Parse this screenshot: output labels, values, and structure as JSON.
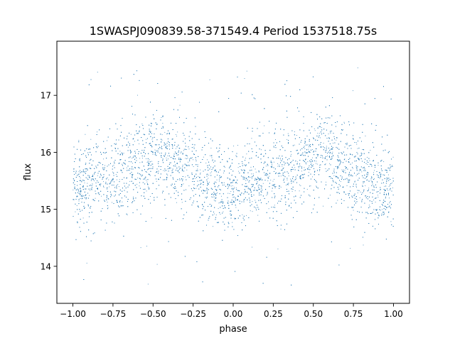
{
  "chart_data": {
    "type": "scatter",
    "title": "1SWASPJ090839.58-371549.4 Period 1537518.75s",
    "xlabel": "phase",
    "ylabel": "flux",
    "xlim": [
      -1.1,
      1.1
    ],
    "ylim": [
      13.35,
      17.95
    ],
    "xticks": [
      -1.0,
      -0.75,
      -0.5,
      -0.25,
      0.0,
      0.25,
      0.5,
      0.75,
      1.0
    ],
    "xtick_labels": [
      "−1.00",
      "−0.75",
      "−0.50",
      "−0.25",
      "0.00",
      "0.25",
      "0.50",
      "0.75",
      "1.00"
    ],
    "yticks": [
      14,
      15,
      16,
      17
    ],
    "ytick_labels": [
      "14",
      "15",
      "16",
      "17"
    ],
    "grid": false,
    "legend": "none",
    "point_color": "#1f77b4",
    "series": [
      {
        "phase_range": [
          -1.0,
          1.0
        ],
        "profile": {
          "phase": [
            0.0,
            0.05,
            0.1,
            0.15,
            0.2,
            0.25,
            0.3,
            0.35,
            0.4,
            0.45,
            0.5,
            0.55,
            0.6,
            0.65,
            0.7,
            0.75,
            0.8,
            0.85,
            0.9,
            0.95,
            1.0
          ],
          "flux_mean": [
            15.35,
            15.4,
            15.5,
            15.6,
            15.6,
            15.55,
            15.65,
            15.7,
            15.75,
            15.85,
            15.95,
            16.0,
            15.95,
            15.85,
            15.75,
            15.65,
            15.55,
            15.45,
            15.4,
            15.35,
            15.35
          ],
          "flux_spread": [
            0.35,
            0.35,
            0.38,
            0.38,
            0.38,
            0.38,
            0.38,
            0.38,
            0.38,
            0.38,
            0.4,
            0.4,
            0.4,
            0.38,
            0.38,
            0.38,
            0.38,
            0.36,
            0.35,
            0.35,
            0.35
          ]
        },
        "n_points": 7000,
        "outlier_fraction": 0.03,
        "outlier_flux_range": [
          13.6,
          17.7
        ]
      }
    ]
  }
}
